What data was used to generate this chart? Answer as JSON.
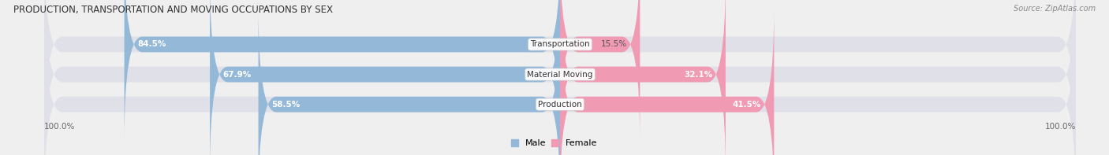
{
  "title": "PRODUCTION, TRANSPORTATION AND MOVING OCCUPATIONS BY SEX",
  "source": "Source: ZipAtlas.com",
  "categories": [
    "Transportation",
    "Material Moving",
    "Production"
  ],
  "male_values": [
    84.5,
    67.9,
    58.5
  ],
  "female_values": [
    15.5,
    32.1,
    41.5
  ],
  "male_color": "#94b8d8",
  "female_color": "#f09ab4",
  "female_dark_color": "#e8608a",
  "bg_color": "#efefef",
  "bar_bg_color": "#e0e0e8",
  "title_color": "#333333",
  "source_color": "#888888",
  "axis_label_left": "100.0%",
  "axis_label_right": "100.0%",
  "figsize": [
    14.06,
    1.97
  ],
  "dpi": 100
}
